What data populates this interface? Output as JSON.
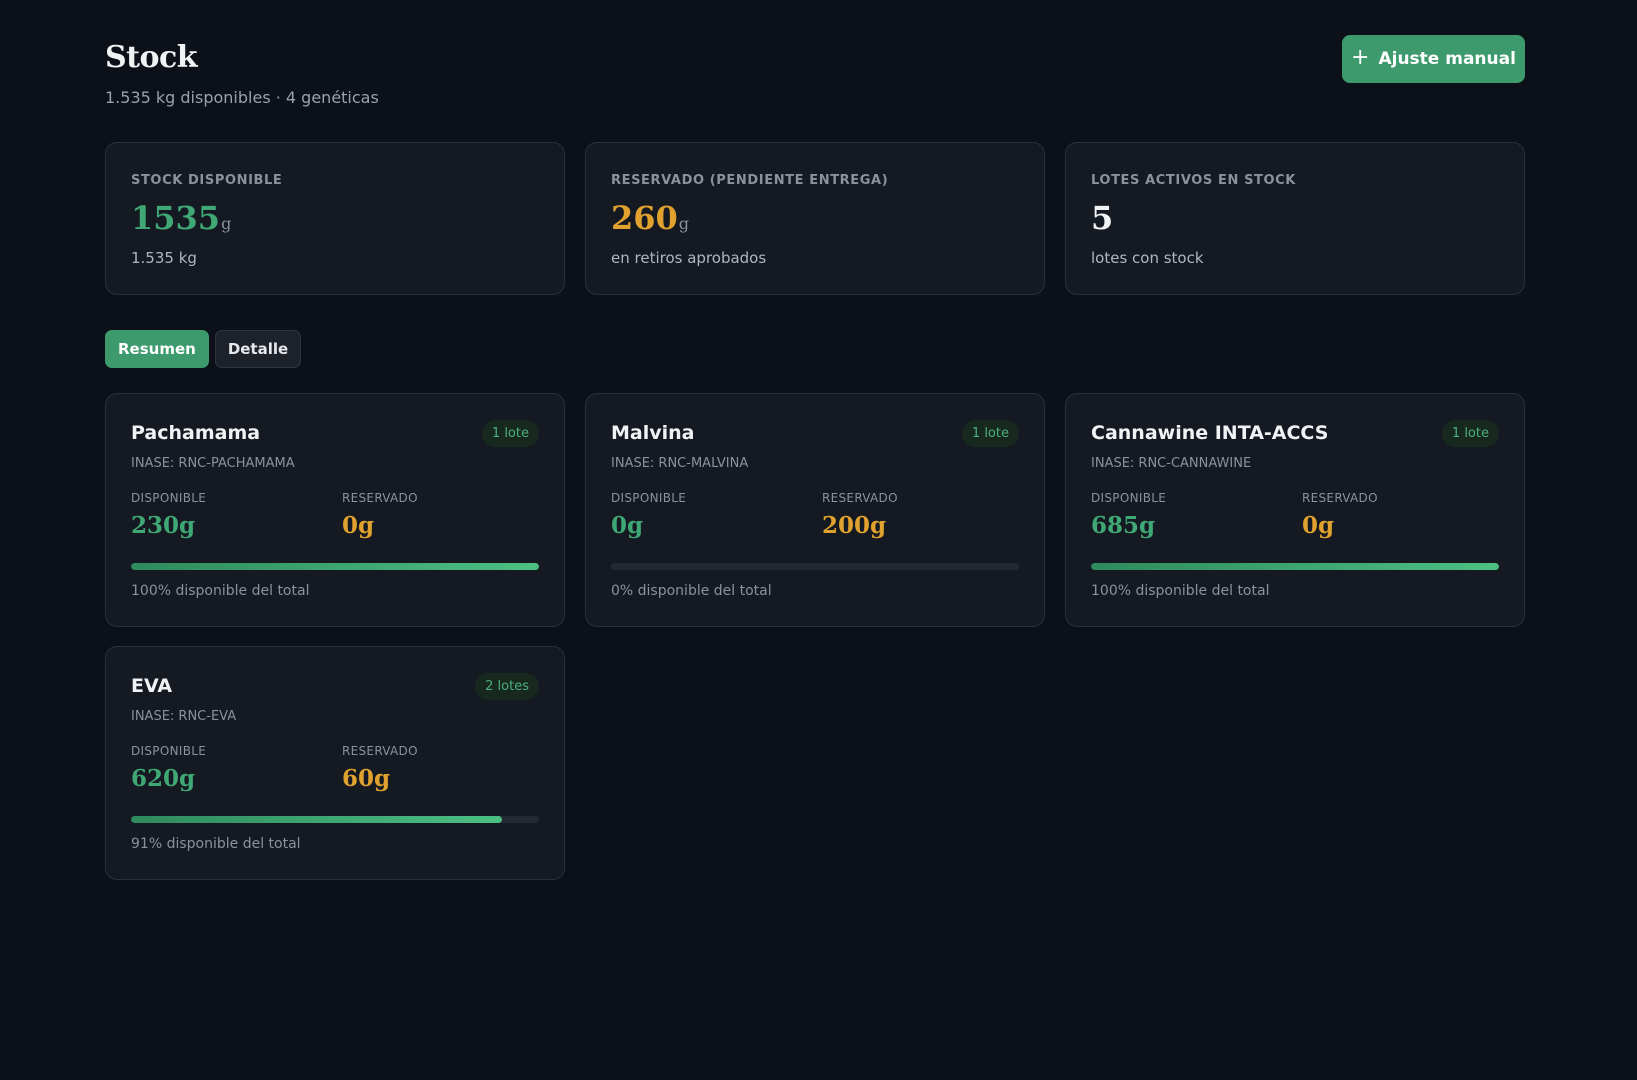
{
  "header": {
    "title": "Stock",
    "subtitle": "1.535 kg disponibles · 4 genéticas",
    "button_label": "Ajuste manual"
  },
  "stats": [
    {
      "label": "STOCK DISPONIBLE",
      "value": "1535",
      "unit": "g",
      "sub": "1.535 kg",
      "color": "#3fa874"
    },
    {
      "label": "RESERVADO (PENDIENTE ENTREGA)",
      "value": "260",
      "unit": "g",
      "sub": "en retiros aprobados",
      "color": "#e0a12e"
    },
    {
      "label": "LOTES ACTIVOS EN STOCK",
      "value": "5",
      "unit": "",
      "sub": "lotes con stock",
      "color": "#f1f2f4"
    }
  ],
  "tabs": [
    {
      "label": "Resumen",
      "active": true
    },
    {
      "label": "Detalle",
      "active": false
    }
  ],
  "geneticas": [
    {
      "name": "Pachamama",
      "badge": "1 lote",
      "inase": "INASE: RNC-PACHAMAMA",
      "disponible_label": "DISPONIBLE",
      "disponible": "230g",
      "reservado_label": "RESERVADO",
      "reservado": "0g",
      "percent": 100,
      "caption": "100% disponible del total"
    },
    {
      "name": "Malvina",
      "badge": "1 lote",
      "inase": "INASE: RNC-MALVINA",
      "disponible_label": "DISPONIBLE",
      "disponible": "0g",
      "reservado_label": "RESERVADO",
      "reservado": "200g",
      "percent": 0,
      "caption": "0% disponible del total"
    },
    {
      "name": "Cannawine INTA-ACCS",
      "badge": "1 lote",
      "inase": "INASE: RNC-CANNAWINE",
      "disponible_label": "DISPONIBLE",
      "disponible": "685g",
      "reservado_label": "RESERVADO",
      "reservado": "0g",
      "percent": 100,
      "caption": "100% disponible del total"
    },
    {
      "name": "EVA",
      "badge": "2 lotes",
      "inase": "INASE: RNC-EVA",
      "disponible_label": "DISPONIBLE",
      "disponible": "620g",
      "reservado_label": "RESERVADO",
      "reservado": "60g",
      "percent": 91,
      "caption": "91% disponible del total"
    }
  ],
  "colors": {
    "accent": "#3c9a6c",
    "available": "#3fa874",
    "reserved": "#e0a12e",
    "background": "#0c1018",
    "card": "#141922"
  },
  "icons": {
    "button_icon": "plus-icon"
  }
}
